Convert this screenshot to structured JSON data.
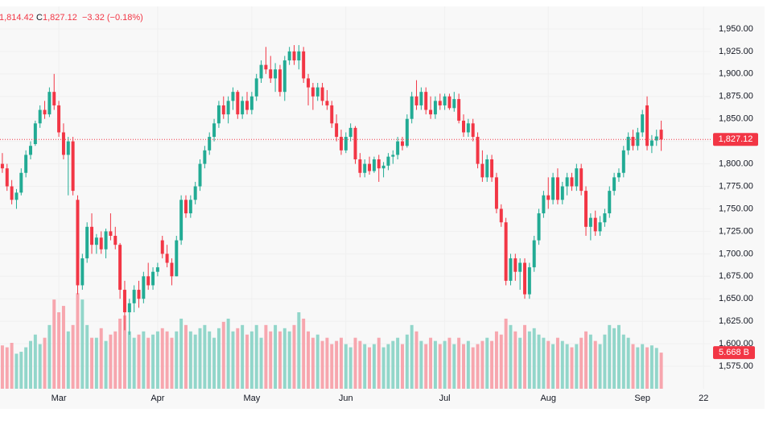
{
  "header": {
    "low": "1,814.42",
    "close_label": "C",
    "close": "1,827.12",
    "change": "−3.32 (−0.18%)"
  },
  "chart_data": {
    "type": "candlestick",
    "up_color": "#22ab94",
    "down_color": "#f23645",
    "volume_up_color": "#92d6ca",
    "volume_down_color": "#f7a6ae",
    "ylim": [
      1550,
      1975
    ],
    "yticks": [
      {
        "value": 1575,
        "label": "1,575.00"
      },
      {
        "value": 1600,
        "label": "1,600.00"
      },
      {
        "value": 1625,
        "label": "1,625.00"
      },
      {
        "value": 1650,
        "label": "1,650.00"
      },
      {
        "value": 1675,
        "label": "1,675.00"
      },
      {
        "value": 1700,
        "label": "1,700.00"
      },
      {
        "value": 1725,
        "label": "1,725.00"
      },
      {
        "value": 1750,
        "label": "1,750.00"
      },
      {
        "value": 1775,
        "label": "1,775.00"
      },
      {
        "value": 1800,
        "label": "1,800.00"
      },
      {
        "value": 1825,
        "label": "1,825.00"
      },
      {
        "value": 1850,
        "label": "1,850.00"
      },
      {
        "value": 1875,
        "label": "1,875.00"
      },
      {
        "value": 1900,
        "label": "1,900.00"
      },
      {
        "value": 1925,
        "label": "1,925.00"
      },
      {
        "value": 1950,
        "label": "1,950.00"
      }
    ],
    "xlim": [
      -0.5,
      150.5
    ],
    "xticks": [
      {
        "value": 12,
        "label": "Mar"
      },
      {
        "value": 33,
        "label": "Apr"
      },
      {
        "value": 53,
        "label": "May"
      },
      {
        "value": 73,
        "label": "Jun"
      },
      {
        "value": 94,
        "label": "Jul"
      },
      {
        "value": 116,
        "label": "Aug"
      },
      {
        "value": 136,
        "label": "Sep"
      },
      {
        "value": 149,
        "label": "22"
      }
    ],
    "volume_ylim": [
      0,
      60
    ],
    "last_price_label": "1,827.12",
    "last_volume_label": "5.668 B",
    "candles": [
      {
        "o": 1800,
        "h": 1812,
        "l": 1790,
        "c": 1795,
        "v": 6.8
      },
      {
        "o": 1795,
        "h": 1800,
        "l": 1770,
        "c": 1775,
        "v": 6.5
      },
      {
        "o": 1775,
        "h": 1782,
        "l": 1755,
        "c": 1760,
        "v": 7.2
      },
      {
        "o": 1760,
        "h": 1772,
        "l": 1750,
        "c": 1768,
        "v": 5.5
      },
      {
        "o": 1768,
        "h": 1795,
        "l": 1765,
        "c": 1790,
        "v": 5.8
      },
      {
        "o": 1790,
        "h": 1815,
        "l": 1785,
        "c": 1810,
        "v": 6.5
      },
      {
        "o": 1810,
        "h": 1825,
        "l": 1805,
        "c": 1820,
        "v": 7.5
      },
      {
        "o": 1822,
        "h": 1848,
        "l": 1820,
        "c": 1845,
        "v": 8.5
      },
      {
        "o": 1845,
        "h": 1865,
        "l": 1840,
        "c": 1860,
        "v": 7
      },
      {
        "o": 1860,
        "h": 1870,
        "l": 1850,
        "c": 1855,
        "v": 8
      },
      {
        "o": 1855,
        "h": 1885,
        "l": 1852,
        "c": 1880,
        "v": 10
      },
      {
        "o": 1880,
        "h": 1900,
        "l": 1860,
        "c": 1865,
        "v": 14
      },
      {
        "o": 1865,
        "h": 1870,
        "l": 1830,
        "c": 1835,
        "v": 12
      },
      {
        "o": 1835,
        "h": 1845,
        "l": 1805,
        "c": 1810,
        "v": 13
      },
      {
        "o": 1810,
        "h": 1830,
        "l": 1765,
        "c": 1825,
        "v": 9
      },
      {
        "o": 1825,
        "h": 1830,
        "l": 1765,
        "c": 1770,
        "v": 10
      },
      {
        "o": 1760,
        "h": 1765,
        "l": 1655,
        "c": 1665,
        "v": 15
      },
      {
        "o": 1665,
        "h": 1700,
        "l": 1660,
        "c": 1695,
        "v": 14
      },
      {
        "o": 1695,
        "h": 1735,
        "l": 1690,
        "c": 1730,
        "v": 10
      },
      {
        "o": 1730,
        "h": 1745,
        "l": 1700,
        "c": 1710,
        "v": 8
      },
      {
        "o": 1710,
        "h": 1722,
        "l": 1700,
        "c": 1718,
        "v": 8
      },
      {
        "o": 1718,
        "h": 1725,
        "l": 1700,
        "c": 1705,
        "v": 9.5
      },
      {
        "o": 1705,
        "h": 1728,
        "l": 1695,
        "c": 1725,
        "v": 7.5
      },
      {
        "o": 1725,
        "h": 1745,
        "l": 1715,
        "c": 1720,
        "v": 8.5
      },
      {
        "o": 1720,
        "h": 1730,
        "l": 1705,
        "c": 1710,
        "v": 9
      },
      {
        "o": 1710,
        "h": 1712,
        "l": 1650,
        "c": 1660,
        "v": 11
      },
      {
        "o": 1660,
        "h": 1670,
        "l": 1615,
        "c": 1635,
        "v": 11.5
      },
      {
        "o": 1635,
        "h": 1650,
        "l": 1610,
        "c": 1645,
        "v": 9
      },
      {
        "o": 1645,
        "h": 1665,
        "l": 1635,
        "c": 1660,
        "v": 8
      },
      {
        "o": 1660,
        "h": 1670,
        "l": 1640,
        "c": 1650,
        "v": 8.5
      },
      {
        "o": 1650,
        "h": 1680,
        "l": 1645,
        "c": 1675,
        "v": 9
      },
      {
        "o": 1675,
        "h": 1690,
        "l": 1660,
        "c": 1665,
        "v": 8
      },
      {
        "o": 1665,
        "h": 1685,
        "l": 1660,
        "c": 1680,
        "v": 8.5
      },
      {
        "o": 1680,
        "h": 1690,
        "l": 1675,
        "c": 1685,
        "v": 9
      },
      {
        "o": 1715,
        "h": 1720,
        "l": 1695,
        "c": 1700,
        "v": 9.5
      },
      {
        "o": 1700,
        "h": 1710,
        "l": 1685,
        "c": 1690,
        "v": 9
      },
      {
        "o": 1690,
        "h": 1695,
        "l": 1665,
        "c": 1675,
        "v": 8
      },
      {
        "o": 1675,
        "h": 1720,
        "l": 1675,
        "c": 1715,
        "v": 9
      },
      {
        "o": 1715,
        "h": 1765,
        "l": 1710,
        "c": 1760,
        "v": 11
      },
      {
        "o": 1760,
        "h": 1765,
        "l": 1740,
        "c": 1745,
        "v": 10
      },
      {
        "o": 1745,
        "h": 1765,
        "l": 1740,
        "c": 1760,
        "v": 9
      },
      {
        "o": 1760,
        "h": 1780,
        "l": 1755,
        "c": 1775,
        "v": 8.5
      },
      {
        "o": 1775,
        "h": 1805,
        "l": 1770,
        "c": 1800,
        "v": 9.5
      },
      {
        "o": 1800,
        "h": 1820,
        "l": 1795,
        "c": 1815,
        "v": 10
      },
      {
        "o": 1815,
        "h": 1835,
        "l": 1810,
        "c": 1830,
        "v": 9
      },
      {
        "o": 1830,
        "h": 1850,
        "l": 1825,
        "c": 1845,
        "v": 8
      },
      {
        "o": 1845,
        "h": 1870,
        "l": 1840,
        "c": 1865,
        "v": 9.5
      },
      {
        "o": 1865,
        "h": 1875,
        "l": 1850,
        "c": 1855,
        "v": 10.5
      },
      {
        "o": 1855,
        "h": 1875,
        "l": 1845,
        "c": 1870,
        "v": 11
      },
      {
        "o": 1870,
        "h": 1885,
        "l": 1860,
        "c": 1880,
        "v": 9
      },
      {
        "o": 1880,
        "h": 1882,
        "l": 1850,
        "c": 1855,
        "v": 9.5
      },
      {
        "o": 1855,
        "h": 1875,
        "l": 1850,
        "c": 1870,
        "v": 10
      },
      {
        "o": 1870,
        "h": 1880,
        "l": 1855,
        "c": 1860,
        "v": 8.5
      },
      {
        "o": 1860,
        "h": 1880,
        "l": 1855,
        "c": 1875,
        "v": 9
      },
      {
        "o": 1875,
        "h": 1900,
        "l": 1870,
        "c": 1895,
        "v": 10
      },
      {
        "o": 1895,
        "h": 1915,
        "l": 1890,
        "c": 1910,
        "v": 8
      },
      {
        "o": 1910,
        "h": 1930,
        "l": 1900,
        "c": 1905,
        "v": 10
      },
      {
        "o": 1905,
        "h": 1920,
        "l": 1890,
        "c": 1895,
        "v": 9
      },
      {
        "o": 1895,
        "h": 1912,
        "l": 1880,
        "c": 1905,
        "v": 10
      },
      {
        "o": 1905,
        "h": 1910,
        "l": 1875,
        "c": 1880,
        "v": 9
      },
      {
        "o": 1880,
        "h": 1920,
        "l": 1870,
        "c": 1915,
        "v": 9.5
      },
      {
        "o": 1915,
        "h": 1930,
        "l": 1910,
        "c": 1925,
        "v": 9
      },
      {
        "o": 1925,
        "h": 1932,
        "l": 1910,
        "c": 1915,
        "v": 10
      },
      {
        "o": 1915,
        "h": 1932,
        "l": 1905,
        "c": 1925,
        "v": 12
      },
      {
        "o": 1925,
        "h": 1930,
        "l": 1890,
        "c": 1895,
        "v": 11
      },
      {
        "o": 1895,
        "h": 1900,
        "l": 1865,
        "c": 1885,
        "v": 9
      },
      {
        "o": 1885,
        "h": 1890,
        "l": 1860,
        "c": 1875,
        "v": 8
      },
      {
        "o": 1875,
        "h": 1890,
        "l": 1870,
        "c": 1885,
        "v": 8.5
      },
      {
        "o": 1885,
        "h": 1890,
        "l": 1865,
        "c": 1870,
        "v": 7.5
      },
      {
        "o": 1870,
        "h": 1882,
        "l": 1860,
        "c": 1865,
        "v": 8
      },
      {
        "o": 1865,
        "h": 1870,
        "l": 1840,
        "c": 1845,
        "v": 7
      },
      {
        "o": 1845,
        "h": 1855,
        "l": 1825,
        "c": 1830,
        "v": 7.5
      },
      {
        "o": 1830,
        "h": 1838,
        "l": 1810,
        "c": 1815,
        "v": 8
      },
      {
        "o": 1815,
        "h": 1835,
        "l": 1812,
        "c": 1830,
        "v": 7
      },
      {
        "o": 1830,
        "h": 1845,
        "l": 1825,
        "c": 1840,
        "v": 6.5
      },
      {
        "o": 1840,
        "h": 1842,
        "l": 1800,
        "c": 1805,
        "v": 8
      },
      {
        "o": 1805,
        "h": 1812,
        "l": 1785,
        "c": 1790,
        "v": 7.5
      },
      {
        "o": 1790,
        "h": 1805,
        "l": 1785,
        "c": 1800,
        "v": 7
      },
      {
        "o": 1800,
        "h": 1808,
        "l": 1788,
        "c": 1792,
        "v": 6.5
      },
      {
        "o": 1792,
        "h": 1808,
        "l": 1790,
        "c": 1805,
        "v": 7
      },
      {
        "o": 1805,
        "h": 1810,
        "l": 1780,
        "c": 1795,
        "v": 8
      },
      {
        "o": 1795,
        "h": 1802,
        "l": 1785,
        "c": 1798,
        "v": 6.5
      },
      {
        "o": 1798,
        "h": 1812,
        "l": 1793,
        "c": 1808,
        "v": 7
      },
      {
        "o": 1808,
        "h": 1815,
        "l": 1800,
        "c": 1810,
        "v": 7.5
      },
      {
        "o": 1810,
        "h": 1830,
        "l": 1805,
        "c": 1825,
        "v": 8
      },
      {
        "o": 1825,
        "h": 1830,
        "l": 1815,
        "c": 1820,
        "v": 7
      },
      {
        "o": 1820,
        "h": 1855,
        "l": 1818,
        "c": 1850,
        "v": 8.5
      },
      {
        "o": 1850,
        "h": 1880,
        "l": 1845,
        "c": 1875,
        "v": 10
      },
      {
        "o": 1875,
        "h": 1893,
        "l": 1860,
        "c": 1865,
        "v": 9
      },
      {
        "o": 1865,
        "h": 1885,
        "l": 1860,
        "c": 1880,
        "v": 7.5
      },
      {
        "o": 1880,
        "h": 1885,
        "l": 1855,
        "c": 1860,
        "v": 7
      },
      {
        "o": 1860,
        "h": 1875,
        "l": 1850,
        "c": 1855,
        "v": 8
      },
      {
        "o": 1855,
        "h": 1875,
        "l": 1850,
        "c": 1870,
        "v": 7.5
      },
      {
        "o": 1870,
        "h": 1878,
        "l": 1860,
        "c": 1865,
        "v": 7
      },
      {
        "o": 1865,
        "h": 1878,
        "l": 1860,
        "c": 1875,
        "v": 7.5
      },
      {
        "o": 1875,
        "h": 1878,
        "l": 1860,
        "c": 1862,
        "v": 8
      },
      {
        "o": 1862,
        "h": 1880,
        "l": 1858,
        "c": 1872,
        "v": 7
      },
      {
        "o": 1872,
        "h": 1878,
        "l": 1845,
        "c": 1848,
        "v": 8
      },
      {
        "o": 1848,
        "h": 1855,
        "l": 1830,
        "c": 1835,
        "v": 7
      },
      {
        "o": 1835,
        "h": 1850,
        "l": 1830,
        "c": 1845,
        "v": 7.5
      },
      {
        "o": 1845,
        "h": 1850,
        "l": 1825,
        "c": 1830,
        "v": 6.5
      },
      {
        "o": 1830,
        "h": 1835,
        "l": 1795,
        "c": 1800,
        "v": 7
      },
      {
        "o": 1800,
        "h": 1815,
        "l": 1780,
        "c": 1785,
        "v": 7.5
      },
      {
        "o": 1785,
        "h": 1810,
        "l": 1780,
        "c": 1805,
        "v": 8
      },
      {
        "o": 1805,
        "h": 1810,
        "l": 1780,
        "c": 1785,
        "v": 7.5
      },
      {
        "o": 1785,
        "h": 1790,
        "l": 1745,
        "c": 1750,
        "v": 9
      },
      {
        "o": 1750,
        "h": 1755,
        "l": 1730,
        "c": 1735,
        "v": 8.5
      },
      {
        "o": 1735,
        "h": 1740,
        "l": 1665,
        "c": 1670,
        "v": 11
      },
      {
        "o": 1670,
        "h": 1700,
        "l": 1665,
        "c": 1695,
        "v": 10
      },
      {
        "o": 1695,
        "h": 1700,
        "l": 1670,
        "c": 1680,
        "v": 9
      },
      {
        "o": 1680,
        "h": 1695,
        "l": 1660,
        "c": 1690,
        "v": 8
      },
      {
        "o": 1690,
        "h": 1695,
        "l": 1650,
        "c": 1655,
        "v": 10
      },
      {
        "o": 1655,
        "h": 1690,
        "l": 1650,
        "c": 1685,
        "v": 9
      },
      {
        "o": 1685,
        "h": 1720,
        "l": 1680,
        "c": 1715,
        "v": 9.5
      },
      {
        "o": 1715,
        "h": 1750,
        "l": 1710,
        "c": 1745,
        "v": 8.5
      },
      {
        "o": 1745,
        "h": 1770,
        "l": 1740,
        "c": 1765,
        "v": 8
      },
      {
        "o": 1765,
        "h": 1785,
        "l": 1750,
        "c": 1760,
        "v": 7.5
      },
      {
        "o": 1760,
        "h": 1790,
        "l": 1755,
        "c": 1785,
        "v": 7
      },
      {
        "o": 1785,
        "h": 1795,
        "l": 1755,
        "c": 1760,
        "v": 8
      },
      {
        "o": 1760,
        "h": 1780,
        "l": 1755,
        "c": 1775,
        "v": 7.5
      },
      {
        "o": 1775,
        "h": 1790,
        "l": 1765,
        "c": 1785,
        "v": 7
      },
      {
        "o": 1785,
        "h": 1790,
        "l": 1770,
        "c": 1775,
        "v": 6.5
      },
      {
        "o": 1775,
        "h": 1800,
        "l": 1770,
        "c": 1795,
        "v": 7
      },
      {
        "o": 1795,
        "h": 1800,
        "l": 1765,
        "c": 1770,
        "v": 8
      },
      {
        "o": 1770,
        "h": 1775,
        "l": 1720,
        "c": 1730,
        "v": 9
      },
      {
        "o": 1730,
        "h": 1745,
        "l": 1715,
        "c": 1740,
        "v": 8.5
      },
      {
        "o": 1740,
        "h": 1748,
        "l": 1720,
        "c": 1725,
        "v": 7.5
      },
      {
        "o": 1725,
        "h": 1742,
        "l": 1720,
        "c": 1735,
        "v": 7
      },
      {
        "o": 1735,
        "h": 1750,
        "l": 1730,
        "c": 1745,
        "v": 8.5
      },
      {
        "o": 1745,
        "h": 1775,
        "l": 1740,
        "c": 1770,
        "v": 10
      },
      {
        "o": 1770,
        "h": 1790,
        "l": 1765,
        "c": 1785,
        "v": 9.5
      },
      {
        "o": 1785,
        "h": 1795,
        "l": 1780,
        "c": 1790,
        "v": 10
      },
      {
        "o": 1790,
        "h": 1820,
        "l": 1785,
        "c": 1815,
        "v": 8.5
      },
      {
        "o": 1815,
        "h": 1835,
        "l": 1810,
        "c": 1830,
        "v": 8
      },
      {
        "o": 1830,
        "h": 1838,
        "l": 1815,
        "c": 1820,
        "v": 7
      },
      {
        "o": 1820,
        "h": 1840,
        "l": 1815,
        "c": 1835,
        "v": 6.5
      },
      {
        "o": 1835,
        "h": 1860,
        "l": 1830,
        "c": 1855,
        "v": 7
      },
      {
        "o": 1865,
        "h": 1875,
        "l": 1815,
        "c": 1820,
        "v": 6.5
      },
      {
        "o": 1820,
        "h": 1832,
        "l": 1812,
        "c": 1826,
        "v": 6.8
      },
      {
        "o": 1826,
        "h": 1838,
        "l": 1820,
        "c": 1830.44,
        "v": 6.4
      },
      {
        "o": 1838,
        "h": 1848,
        "l": 1814.42,
        "c": 1827.12,
        "v": 5.668
      }
    ]
  }
}
